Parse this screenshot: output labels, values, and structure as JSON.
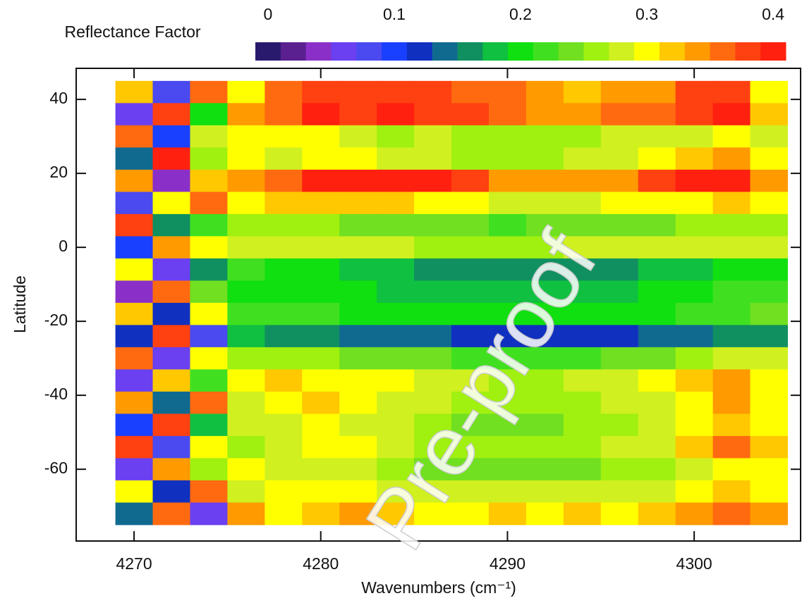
{
  "chart_data": {
    "type": "heatmap",
    "x_label": "Wavenumbers (cm⁻¹)",
    "y_label": "Latitude",
    "annotation": "Pre-proof",
    "xlim": [
      4266.9,
      4305.7
    ],
    "ylim": [
      -79.4,
      48.4
    ],
    "xticks": [
      4270,
      4280,
      4290,
      4300
    ],
    "yticks": [
      40,
      20,
      0,
      -20,
      -40,
      -60
    ],
    "x": [
      4270,
      4272,
      4274,
      4276,
      4278,
      4280,
      4282,
      4284,
      4286,
      4288,
      4290,
      4292,
      4294,
      4296,
      4298,
      4300,
      4302,
      4304
    ],
    "y": [
      42,
      36,
      30,
      24,
      18,
      12,
      6,
      0,
      -6,
      -12,
      -18,
      -24,
      -30,
      -36,
      -42,
      -48,
      -54,
      -60,
      -66,
      -72
    ],
    "z": [
      [
        0.32,
        0.08,
        0.36,
        0.3,
        0.35,
        0.38,
        0.37,
        0.38,
        0.37,
        0.36,
        0.35,
        0.33,
        0.32,
        0.33,
        0.34,
        0.37,
        0.38,
        0.3
      ],
      [
        0.06,
        0.38,
        0.2,
        0.33,
        0.36,
        0.39,
        0.38,
        0.39,
        0.38,
        0.37,
        0.36,
        0.34,
        0.33,
        0.35,
        0.36,
        0.38,
        0.39,
        0.32
      ],
      [
        0.36,
        0.1,
        0.28,
        0.3,
        0.3,
        0.29,
        0.27,
        0.26,
        0.27,
        0.26,
        0.25,
        0.26,
        0.26,
        0.27,
        0.28,
        0.28,
        0.3,
        0.28
      ],
      [
        0.14,
        0.4,
        0.26,
        0.3,
        0.28,
        0.3,
        0.3,
        0.28,
        0.27,
        0.26,
        0.26,
        0.26,
        0.27,
        0.28,
        0.3,
        0.32,
        0.34,
        0.3
      ],
      [
        0.34,
        0.04,
        0.32,
        0.33,
        0.36,
        0.39,
        0.4,
        0.4,
        0.39,
        0.37,
        0.34,
        0.33,
        0.33,
        0.34,
        0.37,
        0.39,
        0.4,
        0.33
      ],
      [
        0.08,
        0.3,
        0.36,
        0.3,
        0.32,
        0.32,
        0.31,
        0.31,
        0.3,
        0.29,
        0.28,
        0.28,
        0.28,
        0.29,
        0.3,
        0.3,
        0.32,
        0.3
      ],
      [
        0.38,
        0.16,
        0.22,
        0.26,
        0.26,
        0.25,
        0.24,
        0.24,
        0.23,
        0.23,
        0.22,
        0.23,
        0.23,
        0.24,
        0.24,
        0.25,
        0.26,
        0.26
      ],
      [
        0.1,
        0.34,
        0.3,
        0.28,
        0.28,
        0.27,
        0.27,
        0.27,
        0.26,
        0.26,
        0.26,
        0.26,
        0.27,
        0.27,
        0.27,
        0.28,
        0.28,
        0.28
      ],
      [
        0.3,
        0.06,
        0.16,
        0.22,
        0.2,
        0.19,
        0.18,
        0.17,
        0.16,
        0.16,
        0.15,
        0.15,
        0.15,
        0.16,
        0.17,
        0.18,
        0.2,
        0.2
      ],
      [
        0.04,
        0.36,
        0.24,
        0.2,
        0.2,
        0.2,
        0.19,
        0.18,
        0.18,
        0.17,
        0.17,
        0.17,
        0.17,
        0.18,
        0.19,
        0.2,
        0.21,
        0.22
      ],
      [
        0.32,
        0.12,
        0.3,
        0.22,
        0.22,
        0.21,
        0.2,
        0.2,
        0.2,
        0.19,
        0.19,
        0.19,
        0.19,
        0.2,
        0.2,
        0.21,
        0.22,
        0.23
      ],
      [
        0.12,
        0.38,
        0.08,
        0.18,
        0.16,
        0.15,
        0.14,
        0.13,
        0.13,
        0.12,
        0.12,
        0.11,
        0.11,
        0.12,
        0.13,
        0.14,
        0.15,
        0.16
      ],
      [
        0.36,
        0.06,
        0.3,
        0.26,
        0.26,
        0.25,
        0.24,
        0.23,
        0.23,
        0.22,
        0.22,
        0.22,
        0.22,
        0.23,
        0.24,
        0.26,
        0.28,
        0.27
      ],
      [
        0.06,
        0.32,
        0.22,
        0.3,
        0.31,
        0.3,
        0.3,
        0.29,
        0.28,
        0.27,
        0.26,
        0.26,
        0.27,
        0.28,
        0.29,
        0.31,
        0.34,
        0.3
      ],
      [
        0.34,
        0.14,
        0.36,
        0.28,
        0.3,
        0.32,
        0.3,
        0.28,
        0.27,
        0.26,
        0.25,
        0.25,
        0.26,
        0.27,
        0.28,
        0.3,
        0.33,
        0.3
      ],
      [
        0.1,
        0.38,
        0.18,
        0.28,
        0.28,
        0.29,
        0.28,
        0.27,
        0.25,
        0.24,
        0.24,
        0.24,
        0.25,
        0.26,
        0.27,
        0.29,
        0.32,
        0.3
      ],
      [
        0.38,
        0.08,
        0.3,
        0.26,
        0.28,
        0.3,
        0.29,
        0.27,
        0.26,
        0.25,
        0.25,
        0.25,
        0.26,
        0.27,
        0.28,
        0.31,
        0.35,
        0.32
      ],
      [
        0.06,
        0.34,
        0.26,
        0.3,
        0.27,
        0.28,
        0.27,
        0.26,
        0.24,
        0.23,
        0.23,
        0.23,
        0.24,
        0.25,
        0.26,
        0.28,
        0.3,
        0.3
      ],
      [
        0.3,
        0.12,
        0.36,
        0.28,
        0.29,
        0.3,
        0.29,
        0.28,
        0.27,
        0.27,
        0.27,
        0.27,
        0.27,
        0.28,
        0.28,
        0.3,
        0.32,
        0.3
      ],
      [
        0.14,
        0.36,
        0.06,
        0.34,
        0.3,
        0.32,
        0.34,
        0.32,
        0.3,
        0.3,
        0.31,
        0.3,
        0.32,
        0.3,
        0.32,
        0.34,
        0.36,
        0.33
      ]
    ],
    "colorbar": {
      "label": "Reflectance Factor",
      "lim": [
        -0.01,
        0.41
      ],
      "ticks": [
        0,
        0.1,
        0.2,
        0.3,
        0.4
      ],
      "colors": [
        "#2a1a6e",
        "#5a2090",
        "#8a30c8",
        "#6a40f0",
        "#4a4af0",
        "#1a40ff",
        "#1030c0",
        "#106a90",
        "#109060",
        "#10c040",
        "#10e010",
        "#40e020",
        "#70e020",
        "#a0f010",
        "#d0f020",
        "#ffff00",
        "#ffc800",
        "#ff9a00",
        "#ff6a10",
        "#ff4010",
        "#ff2010"
      ]
    }
  }
}
